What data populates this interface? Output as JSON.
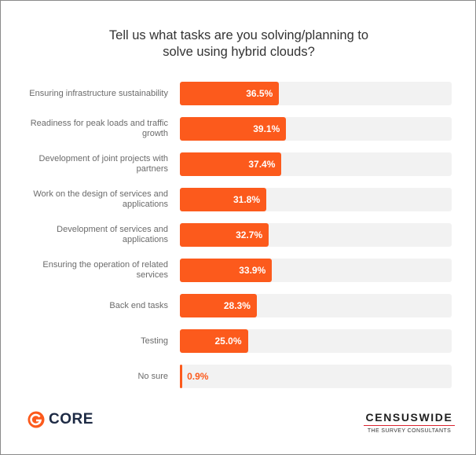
{
  "chart_data": {
    "type": "bar",
    "orientation": "horizontal",
    "title": "Tell us what tasks are you solving/planning to solve using hybrid clouds?",
    "categories": [
      "Ensuring infrastructure sustainability",
      "Readiness for peak loads and traffic growth",
      "Development of joint projects with partners",
      "Work on the design of services and applications",
      "Development of services and applications",
      "Ensuring the operation of related services",
      "Back end tasks",
      "Testing",
      "No sure"
    ],
    "values": [
      36.5,
      39.1,
      37.4,
      31.8,
      32.7,
      33.9,
      28.3,
      25.0,
      0.9
    ],
    "value_labels": [
      "36.5%",
      "39.1%",
      "37.4%",
      "31.8%",
      "32.7%",
      "33.9%",
      "28.3%",
      "25.0%",
      "0.9%"
    ],
    "color": "#fc5a1c",
    "track_color": "#f2f2f2",
    "xlim": [
      0,
      100
    ],
    "footer": {
      "left": "CORE",
      "right": "CENSUSWIDE",
      "right_sub": "THE SURVEY CONSULTANTS"
    }
  }
}
